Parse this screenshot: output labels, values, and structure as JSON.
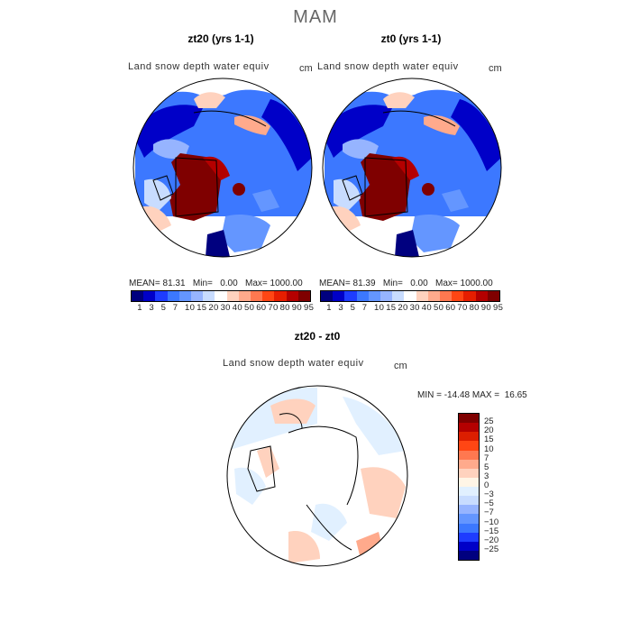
{
  "figure": {
    "title": "MAM"
  },
  "panels": [
    {
      "title": "zt20 (yrs 1-1)",
      "variable": "Land snow depth water equiv",
      "units": "cm",
      "mean_label": "MEAN=",
      "mean": "81.31",
      "min_label": "Min=",
      "min": "0.00",
      "max_label": "Max=",
      "max": "1000.00"
    },
    {
      "title": "zt0 (yrs 1-1)",
      "variable": "Land snow depth water equiv",
      "units": "cm",
      "mean_label": "MEAN=",
      "mean": "81.39",
      "min_label": "Min=",
      "min": "0.00",
      "max_label": "Max=",
      "max": "1000.00"
    }
  ],
  "colorbar_top": {
    "labels": [
      "1",
      "3",
      "5",
      "7",
      "10",
      "15",
      "20",
      "30",
      "40",
      "50",
      "60",
      "70",
      "80",
      "90",
      "95"
    ],
    "colors": [
      "#00007f",
      "#0000c8",
      "#1e3cff",
      "#3c78ff",
      "#6496ff",
      "#96b4ff",
      "#c8dcff",
      "#ffffff",
      "#ffd2be",
      "#ffaa8c",
      "#ff7850",
      "#ff4614",
      "#e61e00",
      "#b40000",
      "#7f0000"
    ]
  },
  "difference": {
    "title": "zt20 - zt0",
    "variable": "Land snow depth water equiv",
    "units": "cm",
    "stats": "MIN = -14.48 MAX =  16.65",
    "labels": [
      "25",
      "20",
      "15",
      "10",
      "7",
      "5",
      "3",
      "0",
      "−3",
      "−5",
      "−7",
      "−10",
      "−15",
      "−20",
      "−25"
    ],
    "colors": [
      "#7f0000",
      "#b40000",
      "#dc1e00",
      "#ff4614",
      "#ff7850",
      "#ffaa8c",
      "#ffd2be",
      "#fff5e6",
      "#e1f0ff",
      "#c8dcff",
      "#96b4ff",
      "#6496ff",
      "#3c78ff",
      "#1e3cff",
      "#0000c8",
      "#00007f"
    ]
  },
  "map_colors": {
    "snow_high": "#7f0000",
    "snow_mid": "#ffd2be",
    "snow_low": "#3c78ff",
    "snow_deep_blue": "#0000c8",
    "ocean": "#ffffff"
  }
}
